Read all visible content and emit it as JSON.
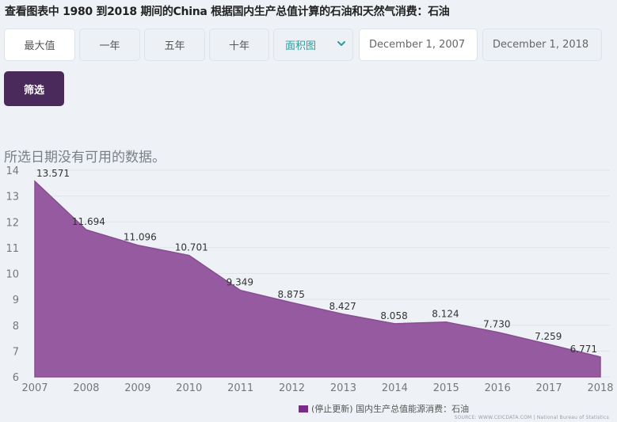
{
  "header": {
    "title": "查看图表中 1980 到2018 期间的China 根据国内生产总值计算的石油和天然气消费：石油"
  },
  "controls": {
    "range_buttons": [
      {
        "label": "最大值",
        "active": true
      },
      {
        "label": "一年",
        "active": false
      },
      {
        "label": "五年",
        "active": false
      },
      {
        "label": "十年",
        "active": false
      }
    ],
    "chart_type": {
      "selected": "面积图",
      "icon": "chevron-down-icon"
    },
    "start_date": "December 1, 2007",
    "end_date": "December 1, 2018",
    "filter_label": "筛选"
  },
  "notice": "所选日期没有可用的数据。",
  "legend": {
    "label": "(停止更新) 国内生产总值能源消费：石油",
    "color": "#7b2a8a"
  },
  "source": "SOURCE: WWW.CEICDATA.COM | National Bureau of Statistics",
  "colors": {
    "area_fill": "#955a9f",
    "area_stroke": "#8a4c95",
    "filter_button": "#4a2a5a",
    "chart_type_text": "#2a9d9a"
  },
  "chart_data": {
    "type": "area",
    "title": "",
    "xlabel": "",
    "ylabel": "",
    "categories": [
      "2007",
      "2008",
      "2009",
      "2010",
      "2011",
      "2012",
      "2013",
      "2014",
      "2015",
      "2016",
      "2017",
      "2018"
    ],
    "series": [
      {
        "name": "(停止更新) 国内生产总值能源消费：石油",
        "values": [
          13.571,
          11.694,
          11.096,
          10.701,
          9.349,
          8.875,
          8.427,
          8.058,
          8.124,
          7.73,
          7.259,
          6.771
        ],
        "labels": [
          "13.571",
          "11.694",
          "11.096",
          "10.701",
          "9.349",
          "8.875",
          "8.427",
          "8.058",
          "8.124",
          "7.730",
          "7.259",
          "6.771"
        ]
      }
    ],
    "yticks": [
      "6",
      "7",
      "8",
      "9",
      "10",
      "11",
      "12",
      "13",
      "14"
    ],
    "ylim": [
      6,
      14
    ],
    "grid": true,
    "legend_position": "bottom"
  }
}
